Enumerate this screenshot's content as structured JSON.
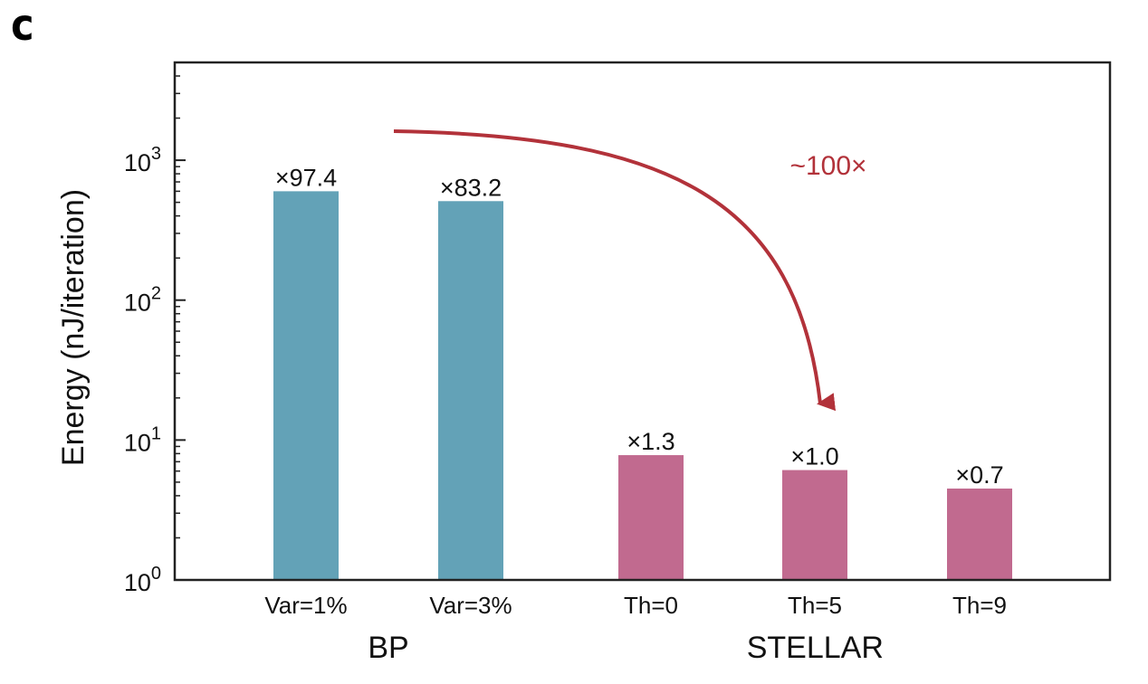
{
  "panel_label": "c",
  "chart_data": {
    "type": "bar",
    "title": "",
    "xlabel": "",
    "ylabel": "Energy (nJ/iteration)",
    "yscale": "log",
    "ylim": [
      1,
      5000
    ],
    "y_ticks": [
      {
        "value": 1,
        "base": "10",
        "exp": "0"
      },
      {
        "value": 10,
        "base": "10",
        "exp": "1"
      },
      {
        "value": 100,
        "base": "10",
        "exp": "2"
      },
      {
        "value": 1000,
        "base": "10",
        "exp": "3"
      }
    ],
    "grid": false,
    "categories": [
      "Var=1%",
      "Var=3%",
      "Th=0",
      "Th=5",
      "Th=9"
    ],
    "values": [
      600,
      510,
      7.8,
      6.1,
      4.5
    ],
    "data_labels": [
      "×97.4",
      "×83.2",
      "×1.3",
      "×1.0",
      "×0.7"
    ],
    "bar_colors": [
      "#63a2b7",
      "#63a2b7",
      "#c16a8f",
      "#c16a8f",
      "#c16a8f"
    ],
    "groups": [
      {
        "label": "BP",
        "categories": [
          "Var=1%",
          "Var=3%"
        ]
      },
      {
        "label": "STELLAR",
        "categories": [
          "Th=0",
          "Th=5",
          "Th=9"
        ]
      }
    ],
    "annotation": {
      "text": "~100×",
      "color": "#b2323a"
    }
  }
}
